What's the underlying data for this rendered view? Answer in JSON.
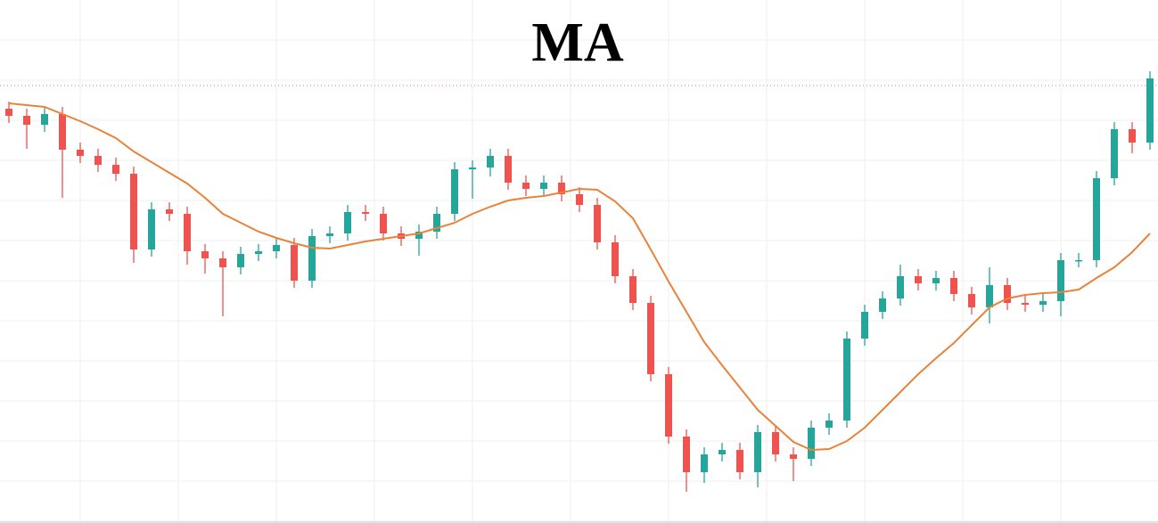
{
  "chart_data": {
    "type": "candlestick",
    "title": "MA",
    "ylim": [
      0,
      587
    ],
    "up_color": "#26a69a",
    "down_color": "#ef5350",
    "ma_color": "#e8833a",
    "reference_line": 491,
    "reference_color": "#e57373",
    "open": [
      465,
      457,
      447,
      459,
      419,
      412,
      402,
      392,
      307,
      352,
      347,
      305,
      297,
      287,
      302,
      305,
      312,
      272,
      322,
      325,
      349,
      347,
      325,
      319,
      327,
      347,
      397,
      399,
      412,
      382,
      375,
      382,
      369,
      357,
      315,
      277,
      247,
      167,
      97,
      57,
      77,
      82,
      57,
      102,
      77,
      72,
      107,
      115,
      207,
      237,
      252,
      277,
      269,
      275,
      257,
      242,
      267,
      247,
      245,
      249,
      295,
      295,
      387,
      442,
      427
    ],
    "high": [
      473,
      465,
      467,
      467,
      427,
      420,
      410,
      400,
      360,
      360,
      355,
      313,
      305,
      310,
      313,
      320,
      320,
      330,
      333,
      357,
      357,
      355,
      333,
      335,
      355,
      405,
      407,
      420,
      420,
      390,
      390,
      390,
      377,
      365,
      323,
      285,
      255,
      175,
      105,
      85,
      90,
      90,
      110,
      110,
      85,
      115,
      123,
      215,
      245,
      260,
      290,
      285,
      283,
      283,
      265,
      287,
      275,
      255,
      257,
      303,
      303,
      395,
      450,
      450,
      507
    ],
    "low": [
      449,
      420,
      439,
      365,
      404,
      394,
      384,
      292,
      299,
      339,
      290,
      280,
      232,
      279,
      294,
      297,
      264,
      264,
      314,
      317,
      339,
      317,
      311,
      300,
      319,
      339,
      364,
      389,
      374,
      367,
      367,
      361,
      349,
      307,
      269,
      239,
      159,
      89,
      35,
      45,
      69,
      49,
      40,
      69,
      47,
      64,
      99,
      107,
      199,
      229,
      244,
      261,
      261,
      249,
      234,
      224,
      239,
      237,
      237,
      232,
      287,
      287,
      379,
      415,
      419
    ],
    "close": [
      457,
      447,
      459,
      419,
      412,
      402,
      392,
      307,
      352,
      347,
      305,
      297,
      287,
      302,
      305,
      312,
      272,
      322,
      325,
      349,
      347,
      325,
      319,
      327,
      347,
      397,
      399,
      412,
      382,
      375,
      382,
      369,
      357,
      315,
      277,
      247,
      167,
      97,
      57,
      77,
      82,
      57,
      102,
      77,
      72,
      107,
      115,
      207,
      237,
      252,
      277,
      269,
      275,
      257,
      242,
      267,
      247,
      245,
      249,
      295,
      295,
      387,
      442,
      427,
      499
    ],
    "ma": [
      471,
      469,
      467,
      459,
      451,
      442,
      432,
      417,
      405,
      393,
      381,
      365,
      347,
      337,
      327,
      320,
      314,
      309,
      308,
      312,
      316,
      319,
      322,
      325,
      331,
      337,
      347,
      355,
      362,
      365,
      367,
      371,
      375,
      374,
      361,
      342,
      307,
      271,
      237,
      203,
      177,
      152,
      127,
      109,
      91,
      82,
      83,
      92,
      107,
      127,
      147,
      167,
      185,
      202,
      222,
      242,
      252,
      256,
      258,
      259,
      262,
      275,
      287,
      304,
      325
    ]
  }
}
